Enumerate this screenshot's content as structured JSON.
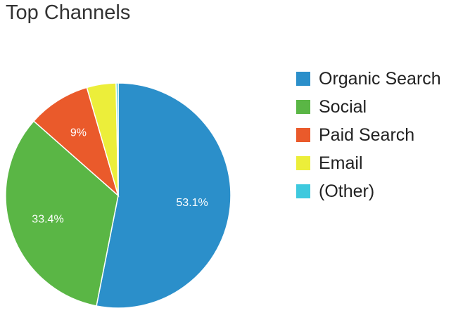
{
  "chart_data": {
    "type": "pie",
    "title": "Top Channels",
    "slices": [
      {
        "name": "Organic Search",
        "value": 53.1,
        "label": "53.1%",
        "color": "#2b8fca"
      },
      {
        "name": "Social",
        "value": 33.4,
        "label": "33.4%",
        "color": "#5ab645"
      },
      {
        "name": "Paid Search",
        "value": 9.0,
        "label": "9%",
        "color": "#ea5a2b"
      },
      {
        "name": "Email",
        "value": 4.2,
        "label": "",
        "color": "#ecee3a"
      },
      {
        "name": "(Other)",
        "value": 0.3,
        "label": "",
        "color": "#3ec9de"
      }
    ],
    "legend_position": "right",
    "start_angle": "top",
    "direction": "clockwise"
  }
}
